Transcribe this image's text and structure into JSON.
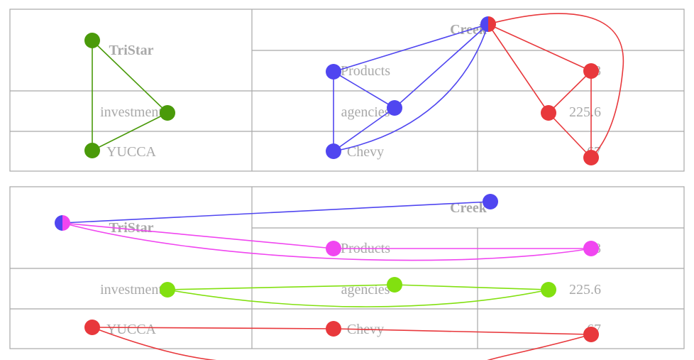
{
  "tables": [
    {
      "id": "top",
      "header_left": "TriStar",
      "header_right": "Creek",
      "rows": [
        {
          "left": "",
          "mid": "Products",
          "right": "38"
        },
        {
          "left": "investment",
          "mid": "agencies",
          "right": "225.6"
        },
        {
          "left": "YUCCA",
          "mid": "Chevy",
          "right": "67"
        }
      ],
      "colors": {
        "green": "#4a9a0a",
        "blue": "#5046f0",
        "red": "#e8383c"
      }
    },
    {
      "id": "bottom",
      "header_left": "TriStar",
      "header_right": "Creek",
      "rows": [
        {
          "left": "",
          "mid": "Products",
          "right": "38"
        },
        {
          "left": "investment",
          "mid": "agencies",
          "right": "225.6"
        },
        {
          "left": "YUCCA",
          "mid": "Chevy",
          "right": "67"
        }
      ],
      "colors": {
        "blue": "#5046f0",
        "magenta": "#f046f0",
        "lime": "#82e010",
        "red": "#e8383c"
      }
    }
  ]
}
